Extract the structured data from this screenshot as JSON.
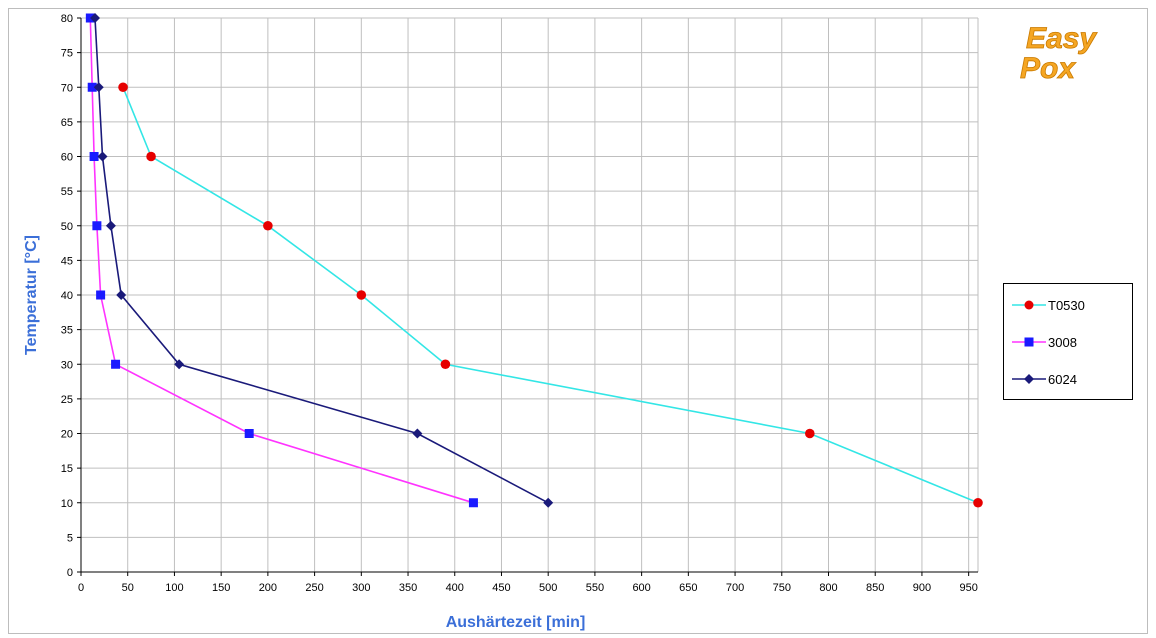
{
  "chart_data": {
    "type": "line",
    "xlabel": "Aushärtezeit [min]",
    "ylabel": "Temperatur [°C]",
    "xlim": [
      0,
      960
    ],
    "ylim": [
      0,
      80
    ],
    "xticks": [
      0,
      50,
      100,
      150,
      200,
      250,
      300,
      350,
      400,
      450,
      500,
      550,
      600,
      650,
      700,
      750,
      800,
      850,
      900,
      950
    ],
    "yticks": [
      0,
      5,
      10,
      15,
      20,
      25,
      30,
      35,
      40,
      45,
      50,
      55,
      60,
      65,
      70,
      75,
      80
    ],
    "grid": true,
    "legend_position": "right",
    "series": [
      {
        "name": "T0530",
        "color": "#33e6e6",
        "marker": "circle",
        "marker_color": "#e60000",
        "points": [
          [
            45,
            70
          ],
          [
            75,
            60
          ],
          [
            200,
            50
          ],
          [
            300,
            40
          ],
          [
            390,
            30
          ],
          [
            780,
            20
          ],
          [
            960,
            10
          ]
        ]
      },
      {
        "name": "3008",
        "color": "#ff33ff",
        "marker": "square",
        "marker_color": "#1a1aff",
        "points": [
          [
            10,
            80
          ],
          [
            12,
            70
          ],
          [
            14,
            60
          ],
          [
            17,
            50
          ],
          [
            21,
            40
          ],
          [
            37,
            30
          ],
          [
            180,
            20
          ],
          [
            420,
            10
          ]
        ]
      },
      {
        "name": "6024",
        "color": "#1a1a7a",
        "marker": "diamond",
        "marker_color": "#1a1a7a",
        "points": [
          [
            15,
            80
          ],
          [
            19,
            70
          ],
          [
            23,
            60
          ],
          [
            32,
            50
          ],
          [
            43,
            40
          ],
          [
            105,
            30
          ],
          [
            360,
            20
          ],
          [
            500,
            10
          ]
        ]
      }
    ]
  },
  "logo": {
    "line1": "Easy",
    "line2": "Pox",
    "color": "#f5a623"
  },
  "colors": {
    "axis_title": "#3b6fd8",
    "grid": "#bfbfbf"
  }
}
